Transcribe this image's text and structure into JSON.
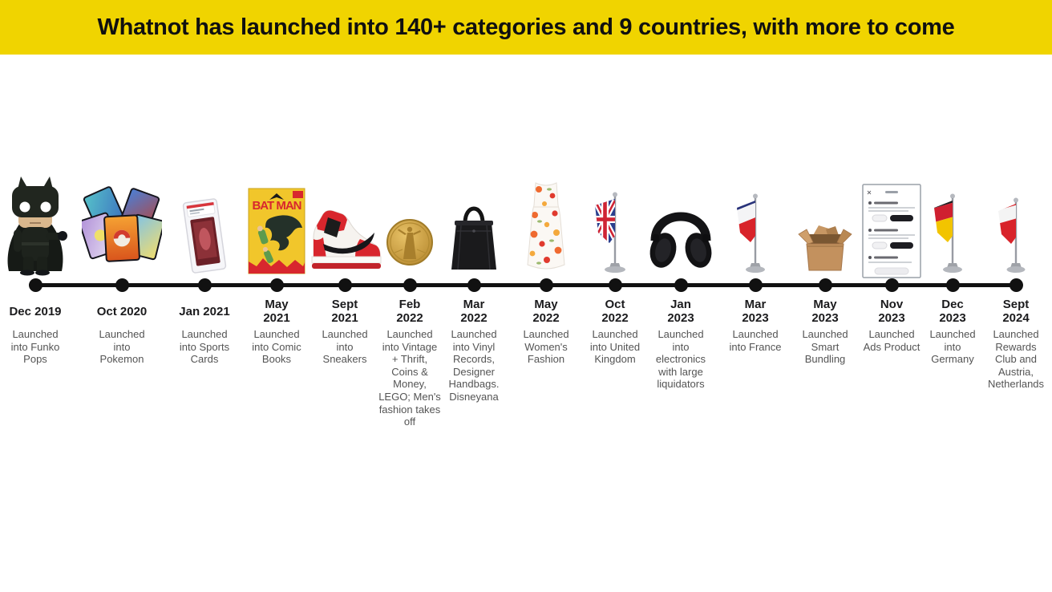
{
  "banner": {
    "title": "Whatnot has launched into 140+ categories and 9 countries, with more to come"
  },
  "colors": {
    "banner_bg": "#F0D400",
    "timeline_line": "#111111",
    "date_text": "#1B1B1D",
    "description_text": "#545454"
  },
  "timeline": {
    "comic_title": "BAT MAN",
    "items": [
      {
        "date": "Dec 2019",
        "description": "Launched into Funko Pops",
        "icon": "funko-pop-batman"
      },
      {
        "date": "Oct 2020",
        "description": "Launched into Pokemon",
        "icon": "pokemon-cards"
      },
      {
        "date": "Jan 2021",
        "description": "Launched into Sports Cards",
        "icon": "graded-sports-card"
      },
      {
        "date": "May\n2021",
        "description": "Launched into Comic Books",
        "icon": "comic-book"
      },
      {
        "date": "Sept\n2021",
        "description": "Launched into Sneakers",
        "icon": "sneaker"
      },
      {
        "date": "Feb\n2022",
        "description": "Launched into Vintage + Thrift, Coins & Money, LEGO; Men's fashion takes off",
        "icon": "gold-coin"
      },
      {
        "date": "Mar\n2022",
        "description": "Launched into Vinyl Records, Designer Handbags. Disneyana",
        "icon": "handbag"
      },
      {
        "date": "May\n2022",
        "description": "Launched Women's Fashion",
        "icon": "floral-dress"
      },
      {
        "date": "Oct\n2022",
        "description": "Launched into United Kingdom",
        "icon": "uk-flag"
      },
      {
        "date": "Jan\n2023",
        "description": "Launched into electronics with large liquidators",
        "icon": "headphones"
      },
      {
        "date": "Mar\n2023",
        "description": "Launched into France",
        "icon": "france-flag"
      },
      {
        "date": "May\n2023",
        "description": "Launched Smart Bundling",
        "icon": "cardboard-box"
      },
      {
        "date": "Nov\n2023",
        "description": "Launched Ads Product",
        "icon": "ads-mockup"
      },
      {
        "date": "Dec\n2023",
        "description": "Launched into Germany",
        "icon": "germany-flag"
      },
      {
        "date": "Sept\n2024",
        "description": "Launched Rewards Club and Austria, Netherlands",
        "icon": "austria-flag"
      }
    ]
  }
}
